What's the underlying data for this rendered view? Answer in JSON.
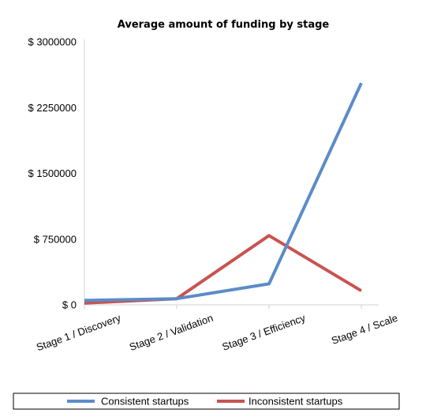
{
  "chart_data": {
    "type": "line",
    "title": "Average amount of funding by stage",
    "xlabel": "",
    "ylabel": "",
    "categories": [
      "Stage 1 / Discovery",
      "Stage 2 / Validation",
      "Stage 3 / Efficiency",
      "Stage 4 / Scale"
    ],
    "yticks": [
      "$ 0",
      "$ 750000",
      "$ 1500000",
      "$ 2250000",
      "$ 3000000"
    ],
    "ylim": [
      0,
      3000000
    ],
    "grid": false,
    "legend_position": "bottom",
    "series": [
      {
        "name": "Consistent startups",
        "color": "#5b8cc8",
        "values": [
          50000,
          70000,
          240000,
          2530000
        ]
      },
      {
        "name": "Inconsistent startups",
        "color": "#c85450",
        "values": [
          20000,
          70000,
          790000,
          160000
        ]
      }
    ]
  }
}
